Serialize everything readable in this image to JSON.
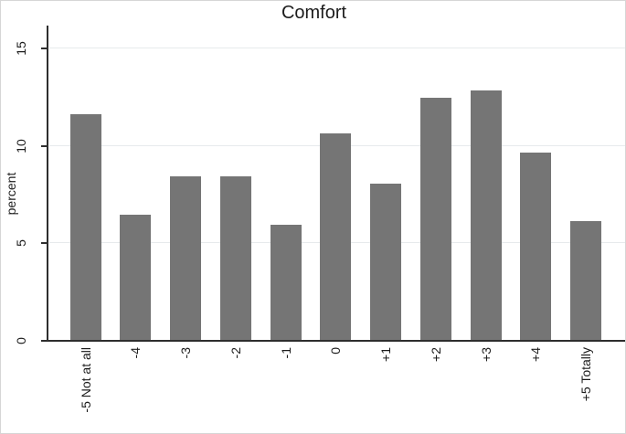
{
  "chart_data": {
    "type": "bar",
    "title": "Comfort",
    "xlabel": "",
    "ylabel": "percent",
    "categories": [
      "-5 Not at all",
      "-4",
      "-3",
      "-2",
      "-1",
      "0",
      "+1",
      "+2",
      "+3",
      "+4",
      "+5 Totally"
    ],
    "values": [
      11.6,
      6.4,
      8.4,
      8.4,
      5.9,
      10.6,
      8.0,
      12.4,
      12.8,
      9.6,
      6.1
    ],
    "ylim": [
      0,
      15
    ],
    "yticks": [
      0,
      5,
      10,
      15
    ],
    "grid": "horizontal-gridlines-at-5-10-15",
    "legend": "none",
    "bar_color": "#757575",
    "grid_color": "#e7eaec",
    "axis_color": "#2e2e2e",
    "text_color": "#1c1c1c",
    "background_color": "#ffffff"
  }
}
